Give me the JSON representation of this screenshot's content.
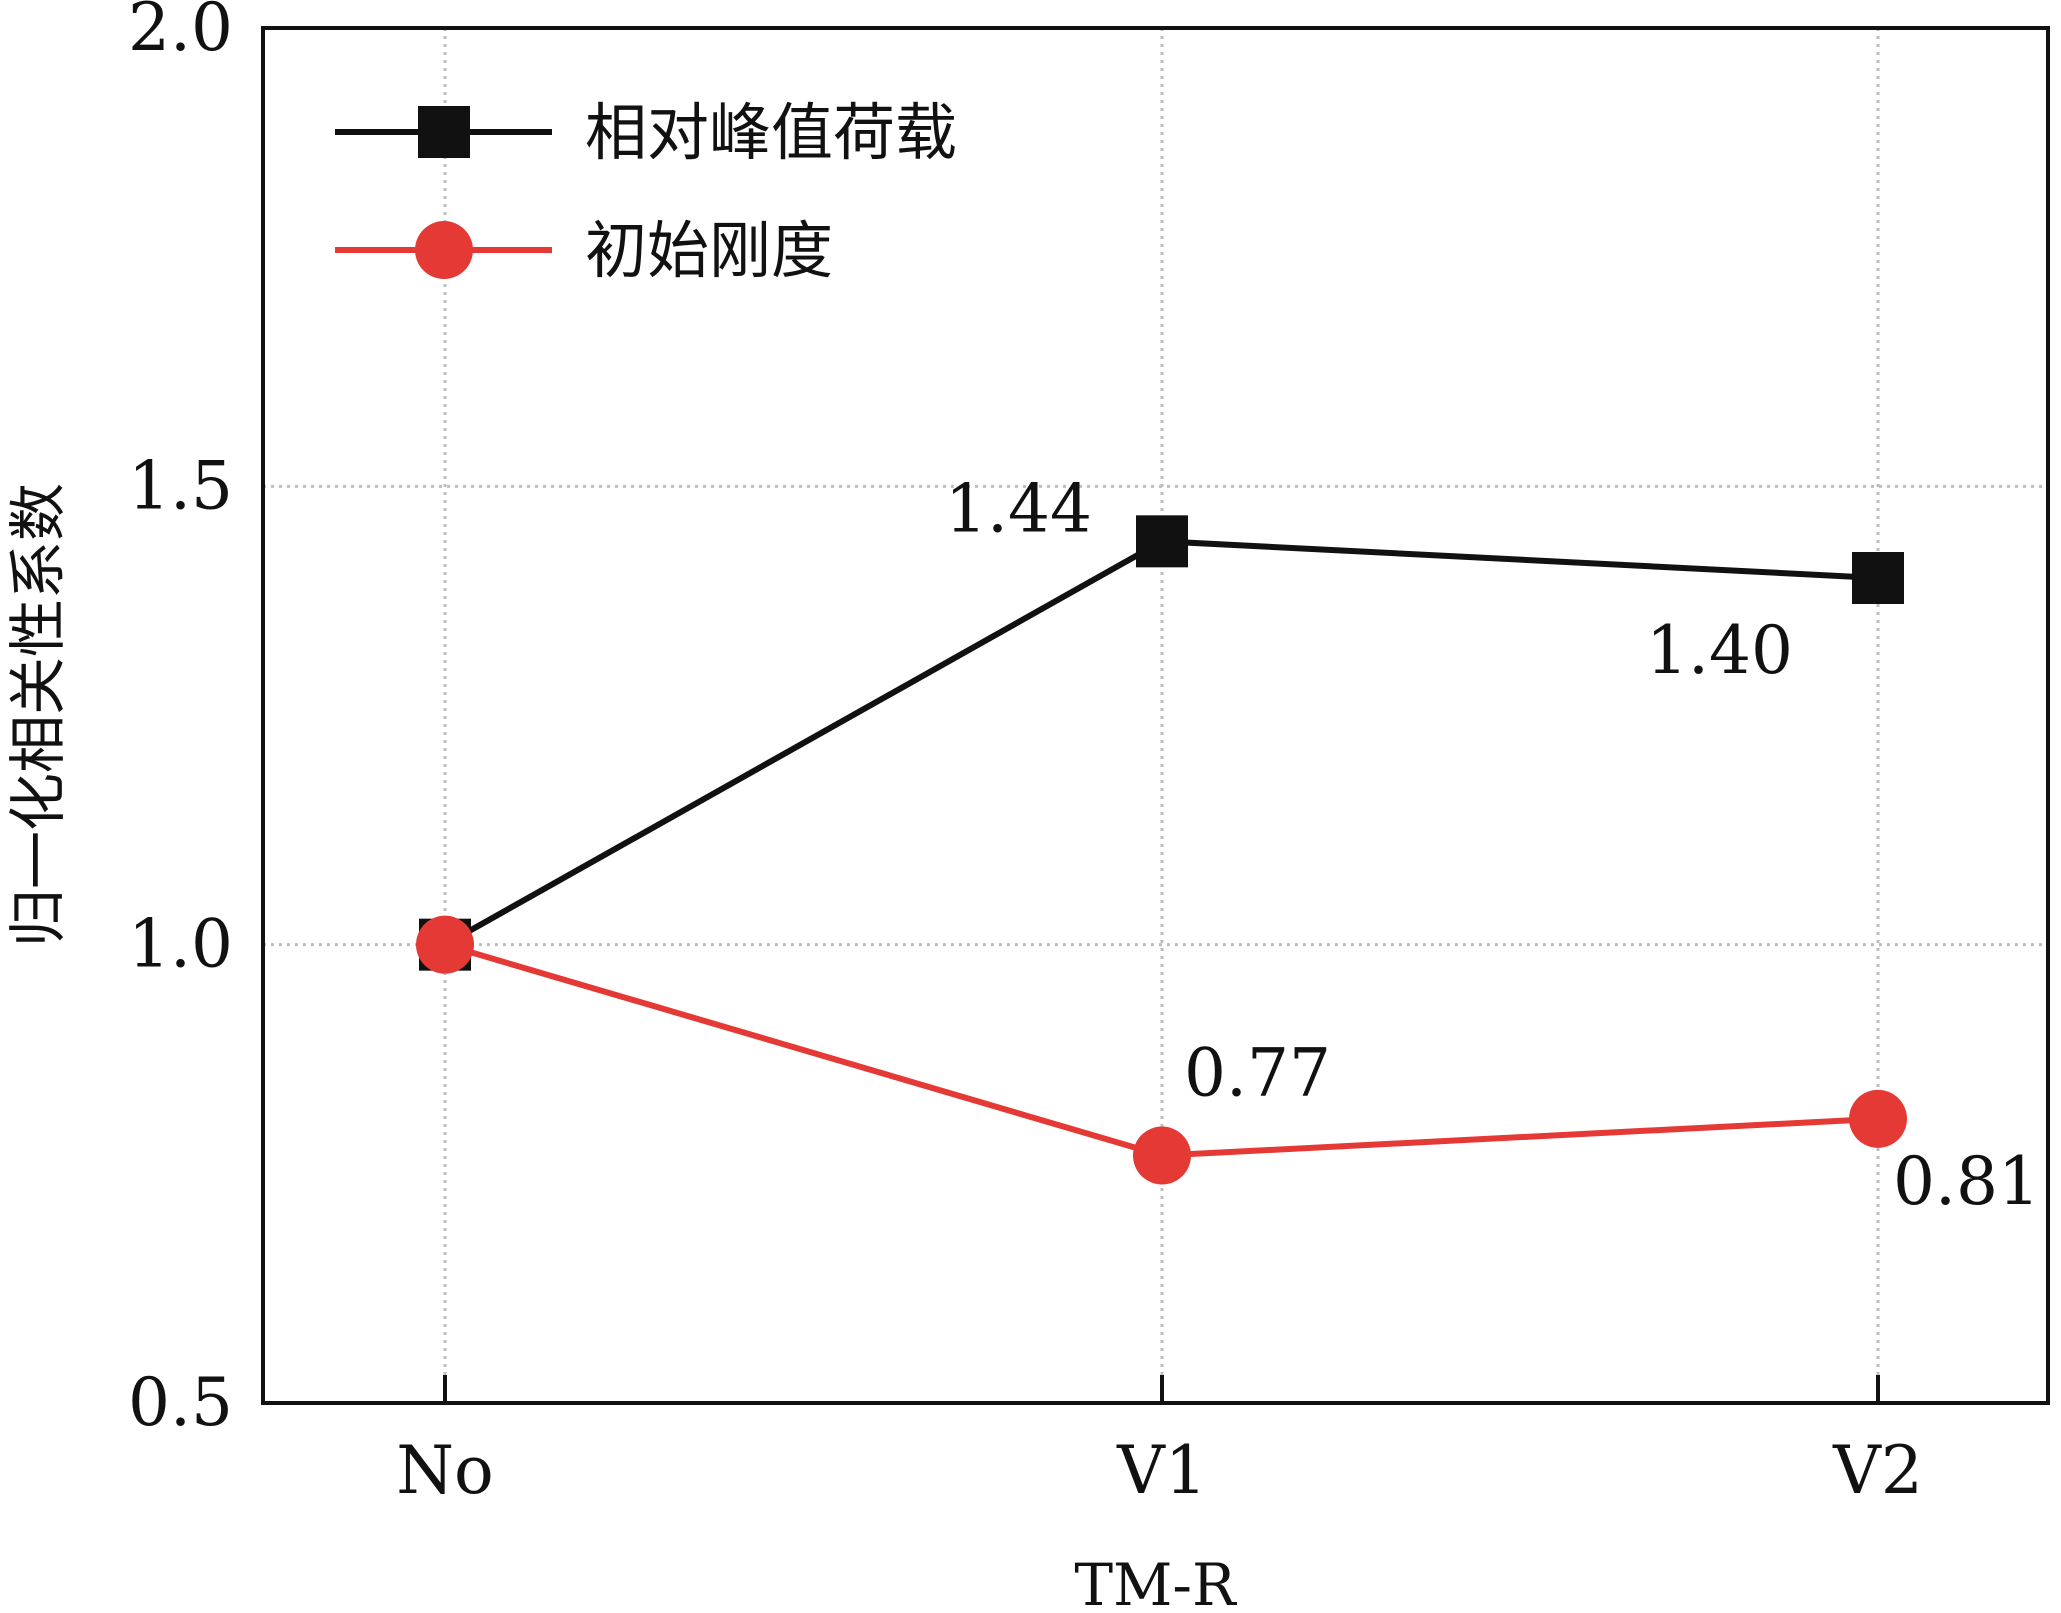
{
  "chart_data": {
    "type": "line",
    "title": "",
    "xlabel": "TM-R",
    "ylabel": "归一化相关性系数",
    "categories": [
      "No",
      "V1",
      "V2"
    ],
    "ylim": [
      0.5,
      2.0
    ],
    "yticks": [
      "0.5",
      "1.0",
      "1.5",
      "2.0"
    ],
    "grid": true,
    "legend_position": "top-left",
    "series": [
      {
        "name": "相对峰值荷载",
        "color": "#111111",
        "marker": "square",
        "values": [
          1.0,
          1.44,
          1.4
        ],
        "labels": [
          "",
          "1.44",
          "1.40"
        ]
      },
      {
        "name": "初始刚度",
        "color": "#e53935",
        "marker": "circle",
        "values": [
          1.0,
          0.77,
          0.81
        ],
        "labels": [
          "",
          "0.77",
          "0.81"
        ]
      }
    ]
  }
}
